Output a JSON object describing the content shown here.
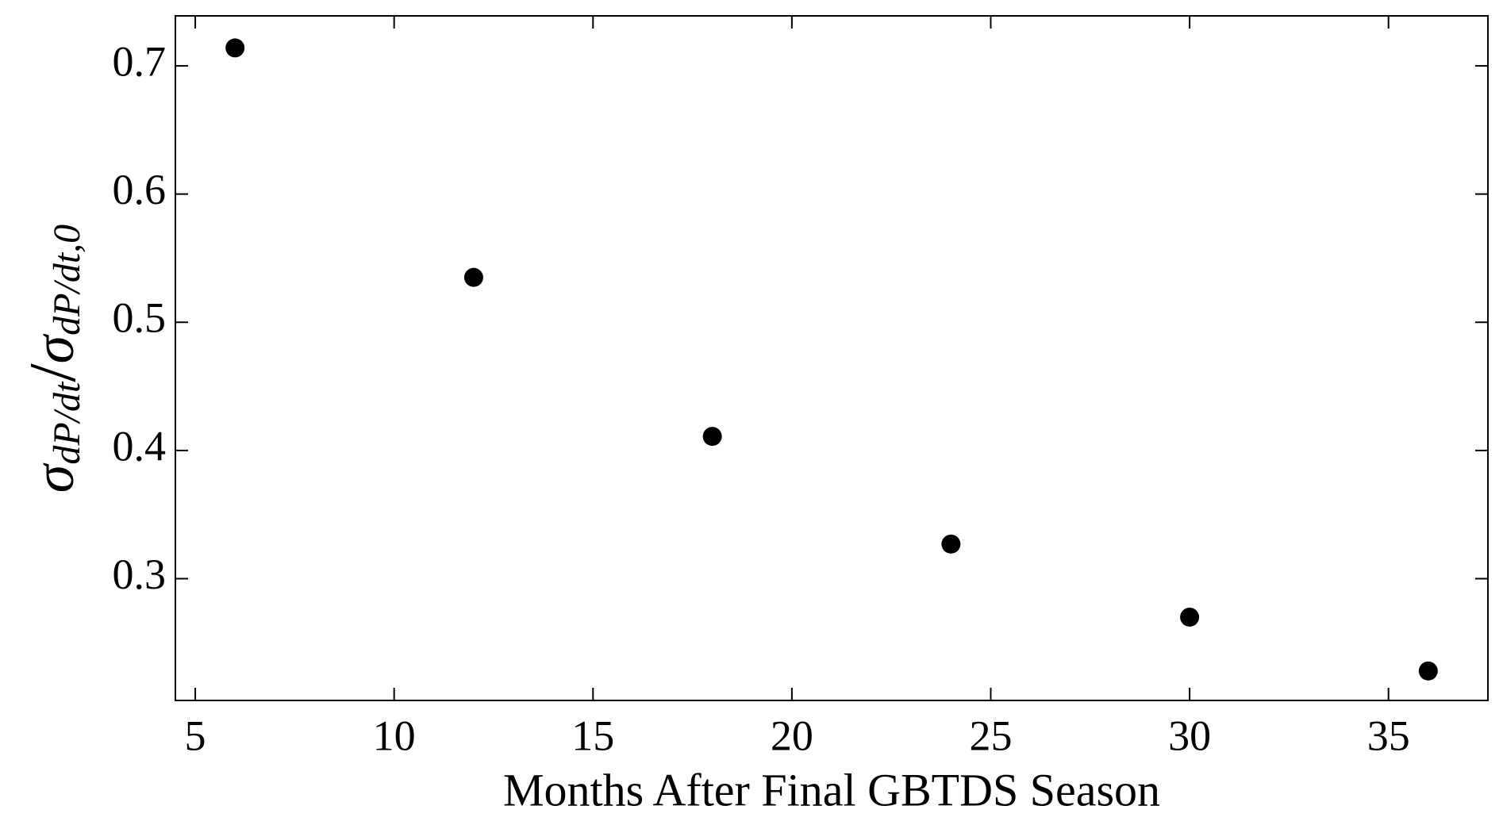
{
  "chart_data": {
    "type": "scatter",
    "xlabel": "Months After Final GBTDS Season",
    "ylabel_parts": [
      "σ",
      "dP/dt",
      "/",
      "σ",
      "dP/dt,0"
    ],
    "x": [
      6,
      12,
      18,
      24,
      30,
      36
    ],
    "values": [
      0.714,
      0.535,
      0.411,
      0.327,
      0.27,
      0.228
    ],
    "color": "#000000",
    "xlim": [
      4.5,
      37.5
    ],
    "xticks": [
      5,
      10,
      15,
      20,
      25,
      30,
      35
    ],
    "ylim": [
      0.205,
      0.739
    ],
    "yticks": [
      0.3,
      0.4,
      0.5,
      0.6,
      0.7
    ],
    "grid": false
  }
}
